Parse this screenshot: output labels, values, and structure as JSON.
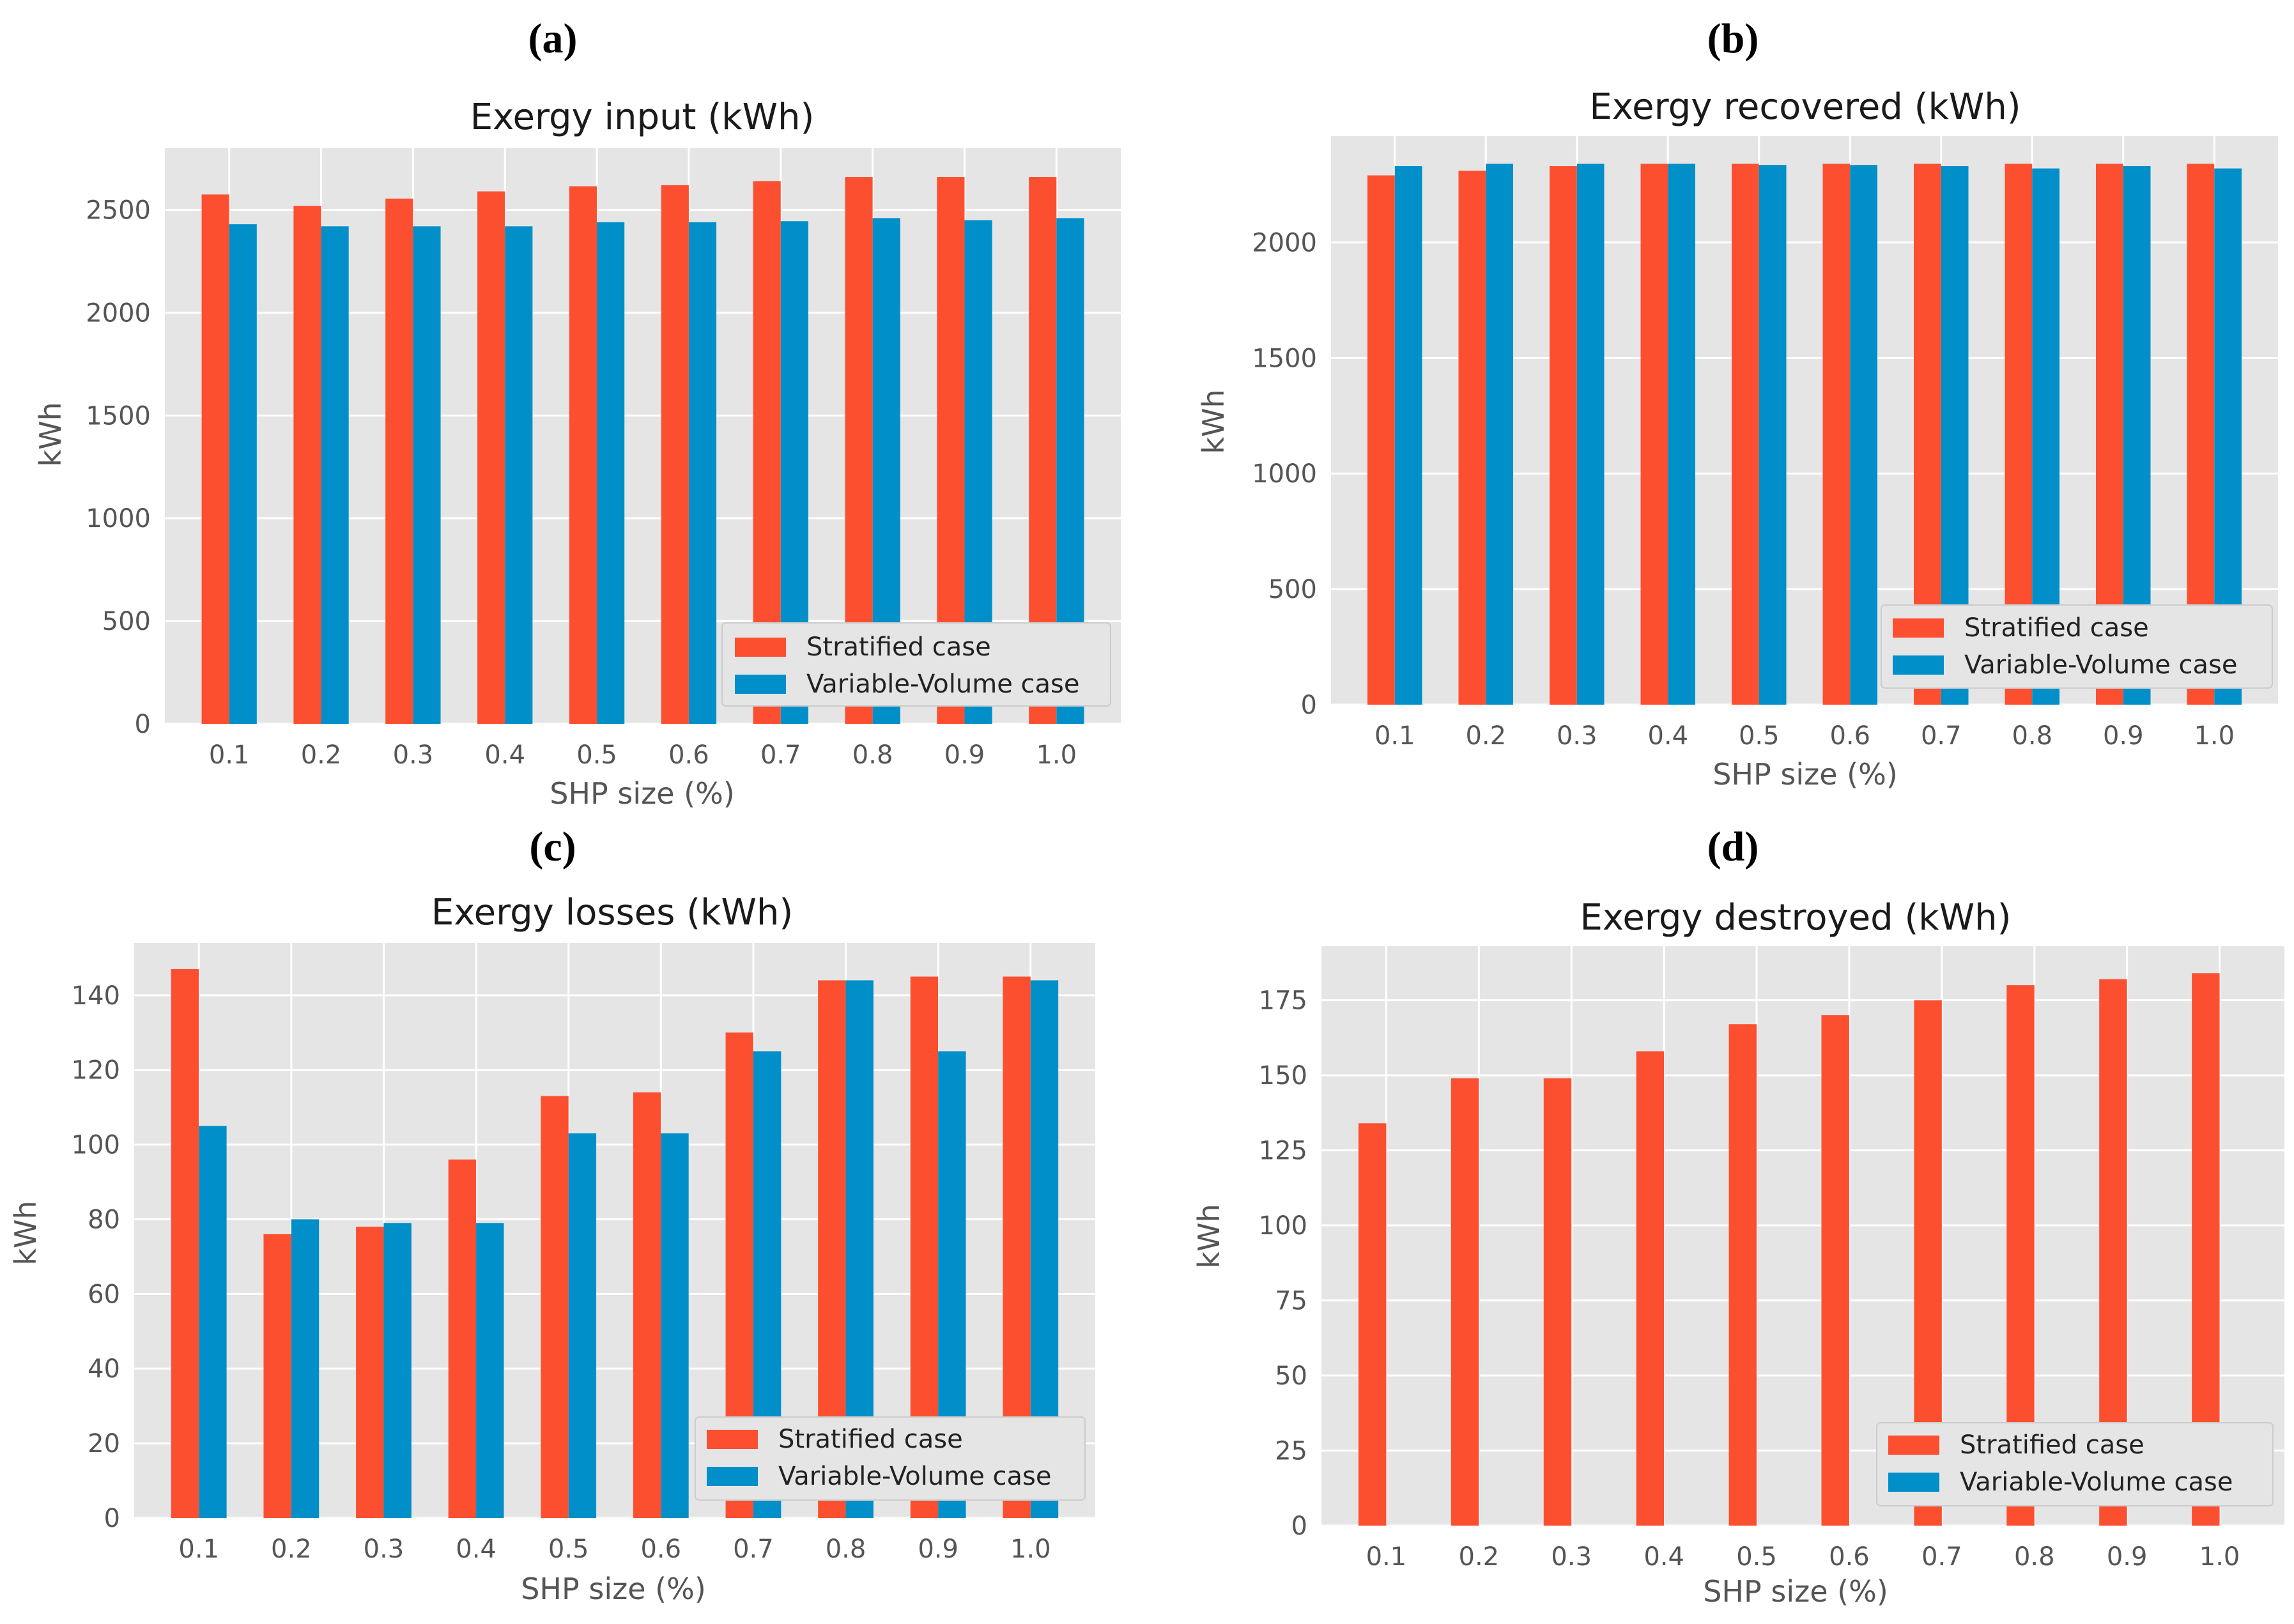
{
  "colors": {
    "stratified": "#FC4F30",
    "variable_volume": "#008FC8",
    "plot_background": "#E5E5E5",
    "grid": "#FFFFFF"
  },
  "chart_data": [
    {
      "panel": "(a)",
      "type": "bar",
      "title": "Exergy input (kWh)",
      "xlabel": "SHP size (%)",
      "ylabel": "kWh",
      "categories": [
        "0.1",
        "0.2",
        "0.3",
        "0.4",
        "0.5",
        "0.6",
        "0.7",
        "0.8",
        "0.9",
        "1.0"
      ],
      "yticks": [
        0,
        500,
        1000,
        1500,
        2000,
        2500
      ],
      "ylim": [
        0,
        2800
      ],
      "series": [
        {
          "name": "Stratified case",
          "values": [
            2575,
            2520,
            2555,
            2590,
            2615,
            2620,
            2640,
            2660,
            2660,
            2660
          ]
        },
        {
          "name": "Variable-Volume case",
          "values": [
            2430,
            2420,
            2420,
            2420,
            2440,
            2440,
            2445,
            2460,
            2450,
            2460
          ]
        }
      ],
      "legend_position": "lower right",
      "grid": true
    },
    {
      "panel": "(b)",
      "type": "bar",
      "title": "Exergy recovered (kWh)",
      "xlabel": "SHP size (%)",
      "ylabel": "kWh",
      "categories": [
        "0.1",
        "0.2",
        "0.3",
        "0.4",
        "0.5",
        "0.6",
        "0.7",
        "0.8",
        "0.9",
        "1.0"
      ],
      "yticks": [
        0,
        500,
        1000,
        1500,
        2000
      ],
      "ylim": [
        0,
        2460
      ],
      "series": [
        {
          "name": "Stratified case",
          "values": [
            2290,
            2310,
            2330,
            2340,
            2340,
            2340,
            2340,
            2340,
            2340,
            2340
          ]
        },
        {
          "name": "Variable-Volume case",
          "values": [
            2330,
            2340,
            2340,
            2340,
            2335,
            2335,
            2330,
            2320,
            2330,
            2320
          ]
        }
      ],
      "legend_position": "lower right",
      "grid": true
    },
    {
      "panel": "(c)",
      "type": "bar",
      "title": "Exergy losses (kWh)",
      "xlabel": "SHP size (%)",
      "ylabel": "kWh",
      "categories": [
        "0.1",
        "0.2",
        "0.3",
        "0.4",
        "0.5",
        "0.6",
        "0.7",
        "0.8",
        "0.9",
        "1.0"
      ],
      "yticks": [
        0,
        20,
        40,
        60,
        80,
        100,
        120,
        140
      ],
      "ylim": [
        0,
        154
      ],
      "series": [
        {
          "name": "Stratified case",
          "values": [
            147,
            76,
            78,
            96,
            113,
            114,
            130,
            144,
            145,
            145
          ]
        },
        {
          "name": "Variable-Volume case",
          "values": [
            105,
            80,
            79,
            79,
            103,
            103,
            125,
            144,
            125,
            144
          ]
        }
      ],
      "legend_position": "lower right",
      "grid": true
    },
    {
      "panel": "(d)",
      "type": "bar",
      "title": "Exergy destroyed (kWh)",
      "xlabel": "SHP size (%)",
      "ylabel": "kWh",
      "categories": [
        "0.1",
        "0.2",
        "0.3",
        "0.4",
        "0.5",
        "0.6",
        "0.7",
        "0.8",
        "0.9",
        "1.0"
      ],
      "yticks": [
        0,
        25,
        50,
        75,
        100,
        125,
        150,
        175
      ],
      "ylim": [
        0,
        193
      ],
      "series": [
        {
          "name": "Stratified case",
          "values": [
            134,
            149,
            149,
            158,
            167,
            170,
            175,
            180,
            182,
            184
          ]
        },
        {
          "name": "Variable-Volume case",
          "values": [
            0,
            0,
            0,
            0,
            0,
            0,
            0,
            0,
            0,
            0
          ]
        }
      ],
      "legend_position": "lower right",
      "grid": true
    }
  ]
}
